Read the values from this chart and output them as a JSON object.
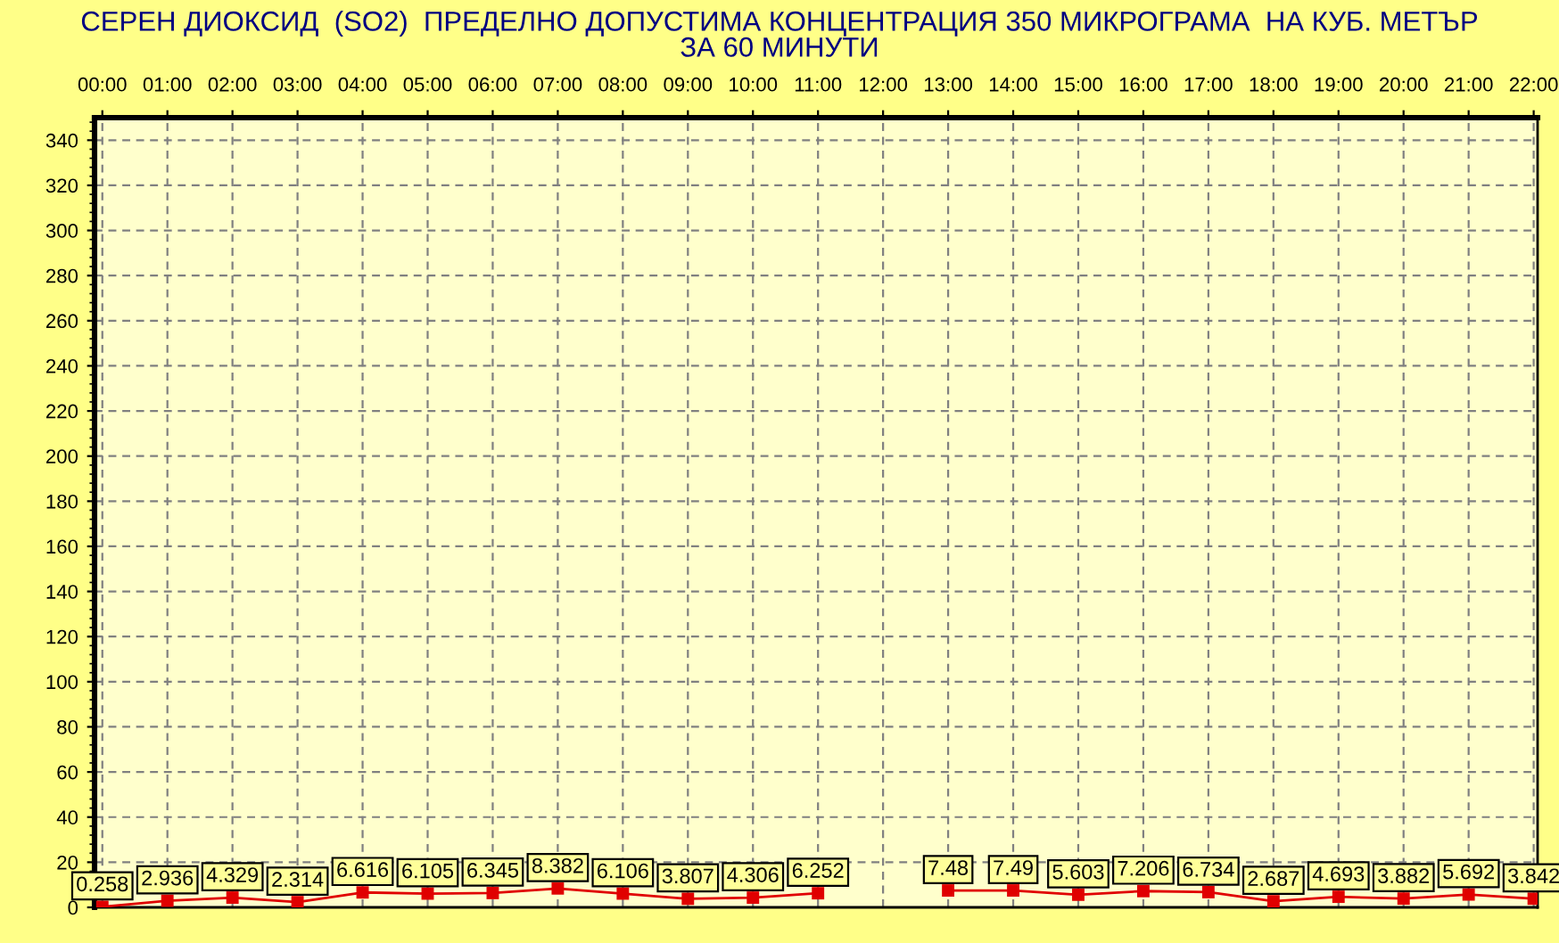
{
  "chart_data": {
    "type": "line",
    "title": "СЕРЕН ДИОКСИД  (SO2)  ПРЕДЕЛНО ДОПУСТИМА КОНЦЕНТРАЦИЯ 350 МИКРОГРАМА  НА КУБ. МЕТЪР\nЗА 60 МИНУТИ",
    "categories": [
      "00:00",
      "01:00",
      "02:00",
      "03:00",
      "04:00",
      "05:00",
      "06:00",
      "07:00",
      "08:00",
      "09:00",
      "10:00",
      "11:00",
      "12:00",
      "13:00",
      "14:00",
      "15:00",
      "16:00",
      "17:00",
      "18:00",
      "19:00",
      "20:00",
      "21:00",
      "22:00"
    ],
    "series": [
      {
        "color": "#e00000",
        "values": [
          0.258,
          2.936,
          4.329,
          2.314,
          6.616,
          6.105,
          6.345,
          8.382,
          6.106,
          3.807,
          4.306,
          6.252,
          null,
          7.48,
          7.49,
          5.603,
          7.206,
          6.734,
          2.687,
          4.693,
          3.882,
          5.692,
          3.842
        ]
      }
    ],
    "ylim": [
      0,
      350
    ],
    "yticks": [
      0,
      20,
      40,
      60,
      80,
      100,
      120,
      140,
      160,
      180,
      200,
      220,
      240,
      260,
      280,
      300,
      320,
      340
    ],
    "grid": true,
    "marker": "square",
    "line_style": "solid",
    "data_labels": true
  }
}
